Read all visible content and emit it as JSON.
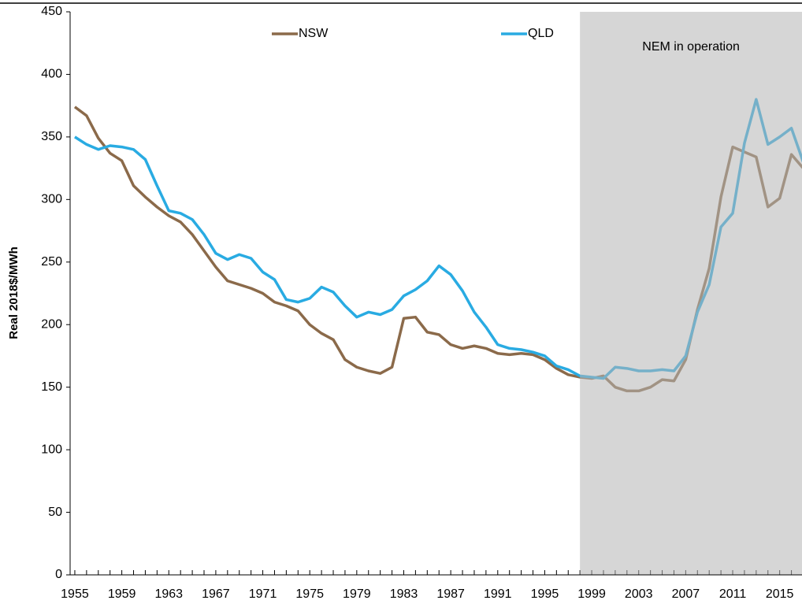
{
  "chart_data": {
    "type": "line",
    "y_label": "Real 2018$/MWh",
    "x": [
      1955,
      1956,
      1957,
      1958,
      1959,
      1960,
      1961,
      1962,
      1963,
      1964,
      1965,
      1966,
      1967,
      1968,
      1969,
      1970,
      1971,
      1972,
      1973,
      1974,
      1975,
      1976,
      1977,
      1978,
      1979,
      1980,
      1981,
      1982,
      1983,
      1984,
      1985,
      1986,
      1987,
      1988,
      1989,
      1990,
      1991,
      1992,
      1993,
      1994,
      1995,
      1996,
      1997,
      1998,
      1999,
      2000,
      2001,
      2002,
      2003,
      2004,
      2005,
      2006,
      2007,
      2008,
      2009,
      2010,
      2011,
      2012,
      2013,
      2014,
      2015,
      2016,
      2017
    ],
    "series": [
      {
        "name": "NSW",
        "color": "#8b6a4a",
        "values": [
          374,
          367,
          349,
          337,
          331,
          311,
          302,
          294,
          287,
          282,
          272,
          259,
          246,
          235,
          232,
          229,
          225,
          218,
          215,
          211,
          200,
          193,
          188,
          172,
          166,
          163,
          161,
          166,
          205,
          206,
          194,
          192,
          184,
          181,
          183,
          181,
          177,
          176,
          177,
          176,
          172,
          165,
          160,
          158,
          157,
          159,
          150,
          147,
          147,
          150,
          156,
          155,
          172,
          212,
          245,
          302,
          342,
          338,
          334,
          294,
          301,
          336,
          325
        ]
      },
      {
        "name": "QLD",
        "color": "#29abe2",
        "values": [
          350,
          344,
          340,
          343,
          342,
          340,
          332,
          311,
          291,
          289,
          284,
          272,
          257,
          252,
          256,
          253,
          242,
          236,
          220,
          218,
          221,
          230,
          226,
          215,
          206,
          210,
          208,
          212,
          223,
          228,
          235,
          247,
          240,
          227,
          210,
          198,
          184,
          181,
          180,
          178,
          175,
          167,
          164,
          159,
          158,
          157,
          166,
          165,
          163,
          163,
          164,
          163,
          175,
          210,
          232,
          278,
          289,
          345,
          380,
          344,
          350,
          357,
          330
        ]
      }
    ],
    "xlim": [
      1954.6,
      2016.9
    ],
    "xticks": [
      1955,
      1959,
      1963,
      1967,
      1971,
      1975,
      1979,
      1983,
      1987,
      1991,
      1995,
      1999,
      2003,
      2007,
      2011,
      2015
    ],
    "ylim": [
      0,
      450
    ],
    "yticks": [
      0,
      50,
      100,
      150,
      200,
      250,
      300,
      350,
      400,
      450
    ],
    "shaded_region": {
      "start": 1998,
      "label": "NEM in operation",
      "color": "#b5b5b5"
    },
    "grid": false
  }
}
